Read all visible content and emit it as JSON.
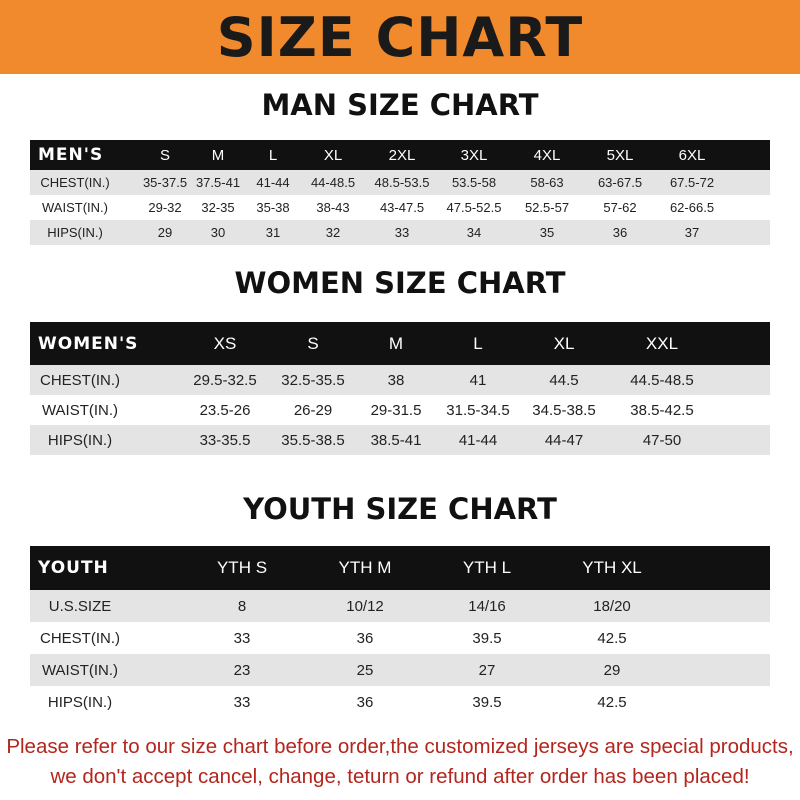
{
  "banner": {
    "title": "SIZE CHART",
    "color": "#f08a2c"
  },
  "men": {
    "title": "MAN SIZE CHART",
    "header": [
      "MEN'S",
      "S",
      "M",
      "L",
      "XL",
      "2XL",
      "3XL",
      "4XL",
      "5XL",
      "6XL"
    ],
    "rows": [
      [
        "CHEST(IN.)",
        "35-37.5",
        "37.5-41",
        "41-44",
        "44-48.5",
        "48.5-53.5",
        "53.5-58",
        "58-63",
        "63-67.5",
        "67.5-72"
      ],
      [
        "WAIST(IN.)",
        "29-32",
        "32-35",
        "35-38",
        "38-43",
        "43-47.5",
        "47.5-52.5",
        "52.5-57",
        "57-62",
        "62-66.5"
      ],
      [
        "HIPS(IN.)",
        "29",
        "30",
        "31",
        "32",
        "33",
        "34",
        "35",
        "36",
        "37"
      ]
    ]
  },
  "women": {
    "title": "WOMEN SIZE CHART",
    "header": [
      "WOMEN'S",
      "XS",
      "S",
      "M",
      "L",
      "XL",
      "XXL"
    ],
    "rows": [
      [
        "CHEST(IN.)",
        "29.5-32.5",
        "32.5-35.5",
        "38",
        "41",
        "44.5",
        "44.5-48.5"
      ],
      [
        "WAIST(IN.)",
        "23.5-26",
        "26-29",
        "29-31.5",
        "31.5-34.5",
        "34.5-38.5",
        "38.5-42.5"
      ],
      [
        "HIPS(IN.)",
        "33-35.5",
        "35.5-38.5",
        "38.5-41",
        "41-44",
        "44-47",
        "47-50"
      ]
    ]
  },
  "youth": {
    "title": "YOUTH SIZE CHART",
    "header": [
      "YOUTH",
      "YTH S",
      "YTH M",
      "YTH L",
      "YTH XL"
    ],
    "rows": [
      [
        "U.S.SIZE",
        "8",
        "10/12",
        "14/16",
        "18/20"
      ],
      [
        "CHEST(IN.)",
        "33",
        "36",
        "39.5",
        "42.5"
      ],
      [
        "WAIST(IN.)",
        "23",
        "25",
        "27",
        "29"
      ],
      [
        "HIPS(IN.)",
        "33",
        "36",
        "39.5",
        "42.5"
      ]
    ]
  },
  "notice": {
    "line1": "Please refer to our size chart before order,the customized jerseys are special products,",
    "line2": "we don't accept cancel, change, teturn or refund after order has been placed!",
    "color": "#b3261e"
  }
}
